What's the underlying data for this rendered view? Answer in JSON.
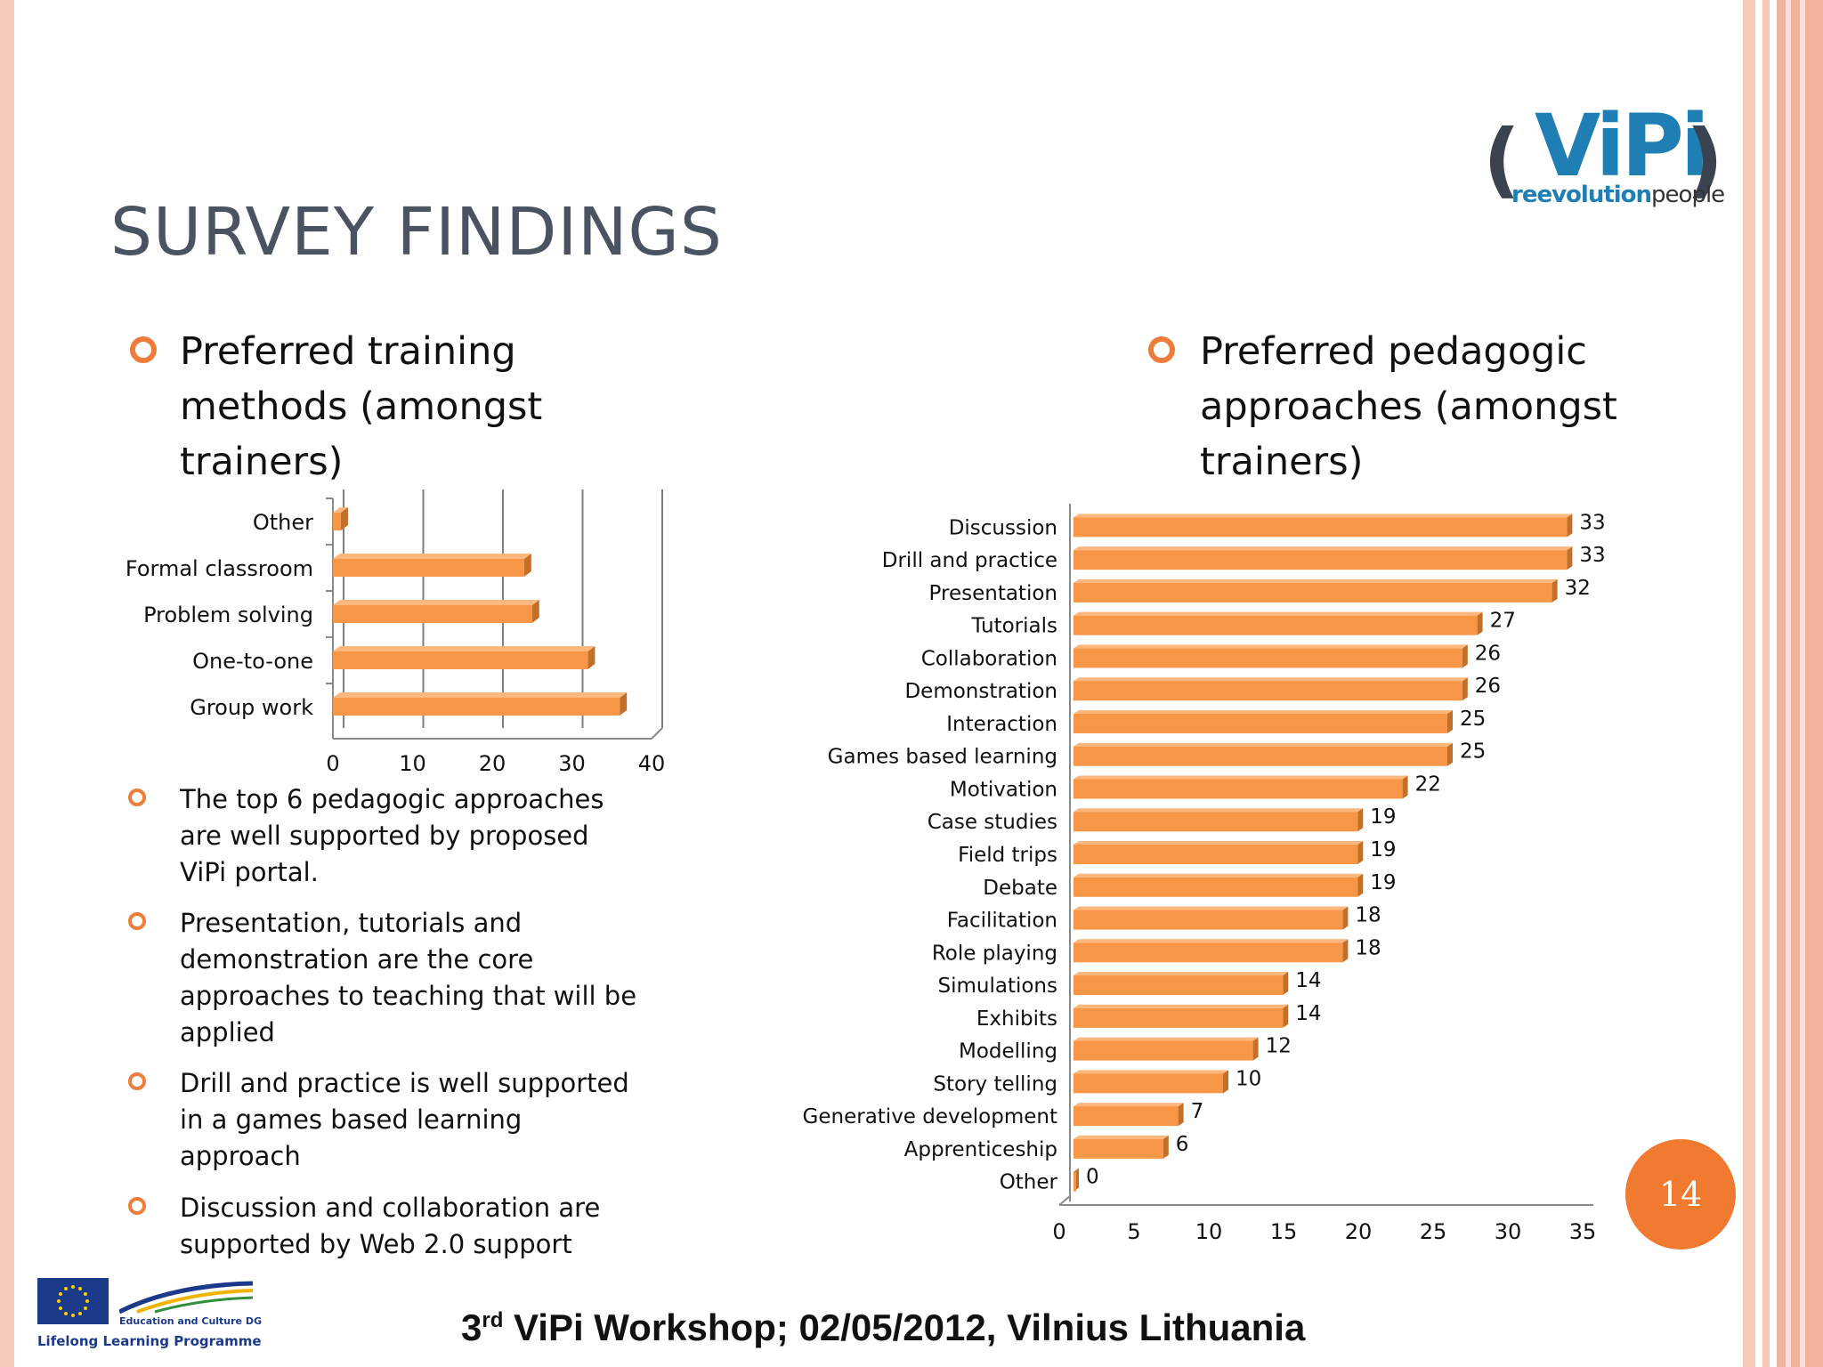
{
  "slide": {
    "title": "SURVEY FINDINGS",
    "page_number": "14",
    "footer": {
      "ordinal": "3",
      "suffix": "rd",
      "text": " ViPi Workshop; 02/05/2012, Vilnius Lithuania"
    }
  },
  "logo": {
    "word": "ViPi",
    "tagline_hl": "reevolution",
    "tagline_rest": "people"
  },
  "eu_logo": {
    "dg": "Education and Culture DG",
    "programme": "Lifelong Learning Programme"
  },
  "left_heading": {
    "lines": [
      "Preferred training",
      "methods (amongst",
      "trainers)"
    ]
  },
  "right_heading": {
    "lines": [
      "Preferred pedagogic",
      "approaches (amongst",
      "trainers)"
    ]
  },
  "bullets": [
    {
      "lines": [
        "The top 6 pedagogic approaches",
        "are well supported by proposed",
        "ViPi portal."
      ]
    },
    {
      "lines": [
        "Presentation, tutorials and",
        "demonstration are the core",
        "approaches to teaching that will be",
        "applied"
      ]
    },
    {
      "lines": [
        "Drill and practice is well supported",
        "in a games based learning",
        "approach"
      ]
    },
    {
      "lines": [
        "Discussion and collaboration are",
        "supported by Web 2.0 support"
      ]
    }
  ],
  "colors": {
    "bar": "#f79646",
    "bar_dark": "#c46f28",
    "accent": "#ee7c3a",
    "title": "#4a5361"
  },
  "chart_data": [
    {
      "type": "bar",
      "orientation": "horizontal",
      "categories": [
        "Other",
        "Formal classroom",
        "Problem solving",
        "One-to-one",
        "Group work"
      ],
      "values": [
        1,
        24,
        25,
        32,
        36
      ],
      "xlim": [
        0,
        40
      ],
      "xticks": [
        0,
        10,
        20,
        30,
        40
      ],
      "grid": true,
      "title": "",
      "xlabel": "",
      "ylabel": ""
    },
    {
      "type": "bar",
      "orientation": "horizontal",
      "categories": [
        "Discussion",
        "Drill and practice",
        "Presentation",
        "Tutorials",
        "Collaboration",
        "Demonstration",
        "Interaction",
        "Games based learning",
        "Motivation",
        "Case studies",
        "Field trips",
        "Debate",
        "Facilitation",
        "Role playing",
        "Simulations",
        "Exhibits",
        "Modelling",
        "Story telling",
        "Generative development",
        "Apprenticeship",
        "Other"
      ],
      "values": [
        33,
        33,
        32,
        27,
        26,
        26,
        25,
        25,
        22,
        19,
        19,
        19,
        18,
        18,
        14,
        14,
        12,
        10,
        7,
        6,
        0
      ],
      "xlim": [
        0,
        35
      ],
      "xticks": [
        0,
        5,
        10,
        15,
        20,
        25,
        30,
        35
      ],
      "grid": false,
      "title": "",
      "xlabel": "",
      "ylabel": ""
    }
  ]
}
